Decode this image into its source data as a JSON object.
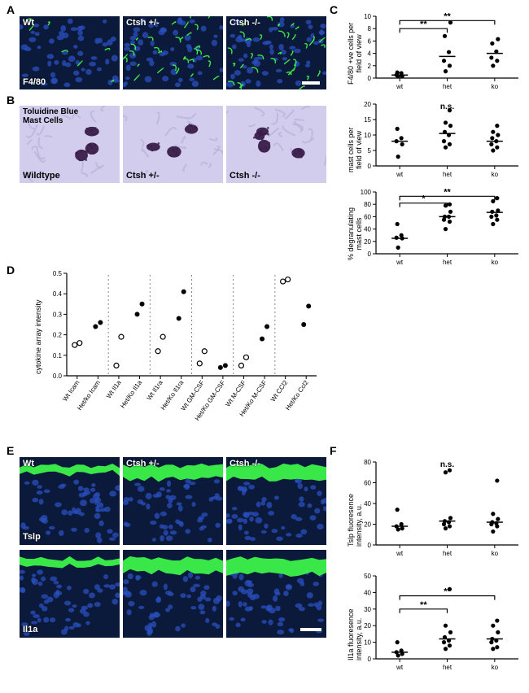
{
  "palette": {
    "if_dark_bg": "#0b1a3a",
    "if_green": "#3eff4a",
    "if_blue": "#2a4fbf",
    "tol_bg": "#d2cdec",
    "tol_cell": "#3a1c4a",
    "panel_border": "#7a7a7a",
    "axis": "#000000",
    "point_open": "#ffffff",
    "point_stroke": "#000000",
    "point_fill": "#000000",
    "grid_dash": "#888888"
  },
  "labels": {
    "A": "A",
    "B": "B",
    "C": "C",
    "D": "D",
    "E": "E",
    "F": "F"
  },
  "panelA": {
    "title_in": "F4/80",
    "cols": [
      {
        "label": "Wt"
      },
      {
        "label": "Ctsh +/-"
      },
      {
        "label": "Ctsh -/-"
      }
    ]
  },
  "panelB": {
    "title_in": "Toluidine Blue\nMast Cells",
    "cols": [
      {
        "label": "Wildtype"
      },
      {
        "label": "Ctsh +/-"
      },
      {
        "label": "Ctsh -/-"
      }
    ]
  },
  "panelE": {
    "rows": [
      {
        "stain": "Tslp"
      },
      {
        "stain": "Il1a"
      }
    ],
    "cols": [
      {
        "label": "Wt"
      },
      {
        "label": "Ctsh +/-"
      },
      {
        "label": "Ctsh -/-"
      }
    ]
  },
  "panelC": {
    "charts": [
      {
        "ylab": "F4/80 +ve cells per\nfield of view",
        "ylim": [
          0,
          10
        ],
        "yticks": [
          0,
          2,
          4,
          6,
          8,
          10
        ],
        "groups": [
          "wt",
          "het",
          "ko"
        ],
        "points": {
          "wt": [
            0.3,
            0.3,
            0.5,
            0.8,
            0.9
          ],
          "het": [
            1.1,
            2.0,
            2.8,
            4.2,
            6.8,
            9.0
          ],
          "ko": [
            2.0,
            2.8,
            3.3,
            4.3,
            5.6,
            6.3
          ]
        },
        "means": {
          "wt": 0.5,
          "het": 3.5,
          "ko": 4.0
        },
        "sig": [
          {
            "from": "wt",
            "to": "het",
            "text": "**",
            "y": 8.0
          },
          {
            "from": "wt",
            "to": "ko",
            "text": "**",
            "y": 9.3
          }
        ],
        "note": null
      },
      {
        "ylab": "mast cells per\nfield of view",
        "ylim": [
          0,
          20
        ],
        "yticks": [
          0,
          5,
          10,
          15,
          20
        ],
        "groups": [
          "wt",
          "het",
          "ko"
        ],
        "points": {
          "wt": [
            3,
            7,
            8,
            9,
            12
          ],
          "het": [
            6,
            7,
            8,
            10,
            11,
            13,
            14,
            18
          ],
          "ko": [
            5,
            6,
            7,
            8,
            9,
            10,
            11,
            13
          ]
        },
        "means": {
          "wt": 8,
          "het": 10.5,
          "ko": 8
        },
        "sig": [],
        "note": "n.s."
      },
      {
        "ylab": "% degranulating\nmast cells",
        "ylim": [
          0,
          100
        ],
        "yticks": [
          0,
          20,
          40,
          60,
          80,
          100
        ],
        "groups": [
          "wt",
          "het",
          "ko"
        ],
        "points": {
          "wt": [
            10,
            25,
            26,
            30,
            48
          ],
          "het": [
            40,
            52,
            55,
            60,
            60,
            68,
            78,
            80
          ],
          "ko": [
            48,
            55,
            60,
            62,
            68,
            70,
            85,
            90
          ]
        },
        "means": {
          "wt": 25,
          "het": 60,
          "ko": 67
        },
        "sig": [
          {
            "from": "wt",
            "to": "het",
            "text": "*",
            "y": 82
          },
          {
            "from": "wt",
            "to": "ko",
            "text": "**",
            "y": 93
          }
        ],
        "note": null
      }
    ]
  },
  "panelD": {
    "ylab": "cytokine array intensity",
    "ylim": [
      0.0,
      0.5
    ],
    "yticks": [
      0.0,
      0.1,
      0.2,
      0.3,
      0.4,
      0.5
    ],
    "pairs": [
      {
        "labels": [
          "Wt Icam",
          "Het/ko Icam"
        ],
        "wt": [
          0.15,
          0.16
        ],
        "mut": [
          0.24,
          0.26
        ]
      },
      {
        "labels": [
          "Wt Il1a",
          "Het/Ko Il1a"
        ],
        "wt": [
          0.05,
          0.19
        ],
        "mut": [
          0.3,
          0.35
        ]
      },
      {
        "labels": [
          "Wt Il1ra",
          "Het/Ko Il1ra"
        ],
        "wt": [
          0.12,
          0.19
        ],
        "mut": [
          0.28,
          0.41
        ]
      },
      {
        "labels": [
          "Wt GM-CSF",
          "Het/Ko GM-CSF"
        ],
        "wt": [
          0.06,
          0.12
        ],
        "mut": [
          0.04,
          0.05
        ]
      },
      {
        "labels": [
          "Wt M-CSF",
          "Het/Ko M-CSF"
        ],
        "wt": [
          0.05,
          0.09
        ],
        "mut": [
          0.18,
          0.24
        ]
      },
      {
        "labels": [
          "Wt CCl2",
          "Het/Ko Ccl2"
        ],
        "wt": [
          0.46,
          0.47
        ],
        "mut": [
          0.25,
          0.34
        ]
      }
    ]
  },
  "panelF": {
    "charts": [
      {
        "ylab": "Tslp fluoresence\nintensity, a.u.",
        "ylim": [
          0,
          80
        ],
        "yticks": [
          0,
          20,
          40,
          60,
          80
        ],
        "groups": [
          "wt",
          "het",
          "ko"
        ],
        "points": {
          "wt": [
            15,
            16,
            18,
            20,
            34
          ],
          "het": [
            16,
            18,
            20,
            22,
            23,
            26,
            70,
            72
          ],
          "ko": [
            13,
            18,
            20,
            21,
            22,
            25,
            30,
            62
          ]
        },
        "means": {
          "wt": 18,
          "het": 23,
          "ko": 22
        },
        "sig": [],
        "note": "n.s."
      },
      {
        "ylab": "Il1a fluoresence\nintensity, a.u.",
        "ylim": [
          0,
          50
        ],
        "yticks": [
          0,
          10,
          20,
          30,
          40,
          50
        ],
        "groups": [
          "wt",
          "het",
          "ko"
        ],
        "points": {
          "wt": [
            2,
            3,
            4,
            5,
            10
          ],
          "het": [
            6,
            8,
            10,
            11,
            13,
            16,
            20,
            42
          ],
          "ko": [
            6,
            7,
            10,
            11,
            12,
            16,
            20,
            23
          ]
        },
        "means": {
          "wt": 4,
          "het": 12,
          "ko": 12
        },
        "sig": [
          {
            "from": "wt",
            "to": "het",
            "text": "**",
            "y": 30
          },
          {
            "from": "wt",
            "to": "ko",
            "text": "**",
            "y": 38
          }
        ],
        "note": null
      }
    ]
  }
}
